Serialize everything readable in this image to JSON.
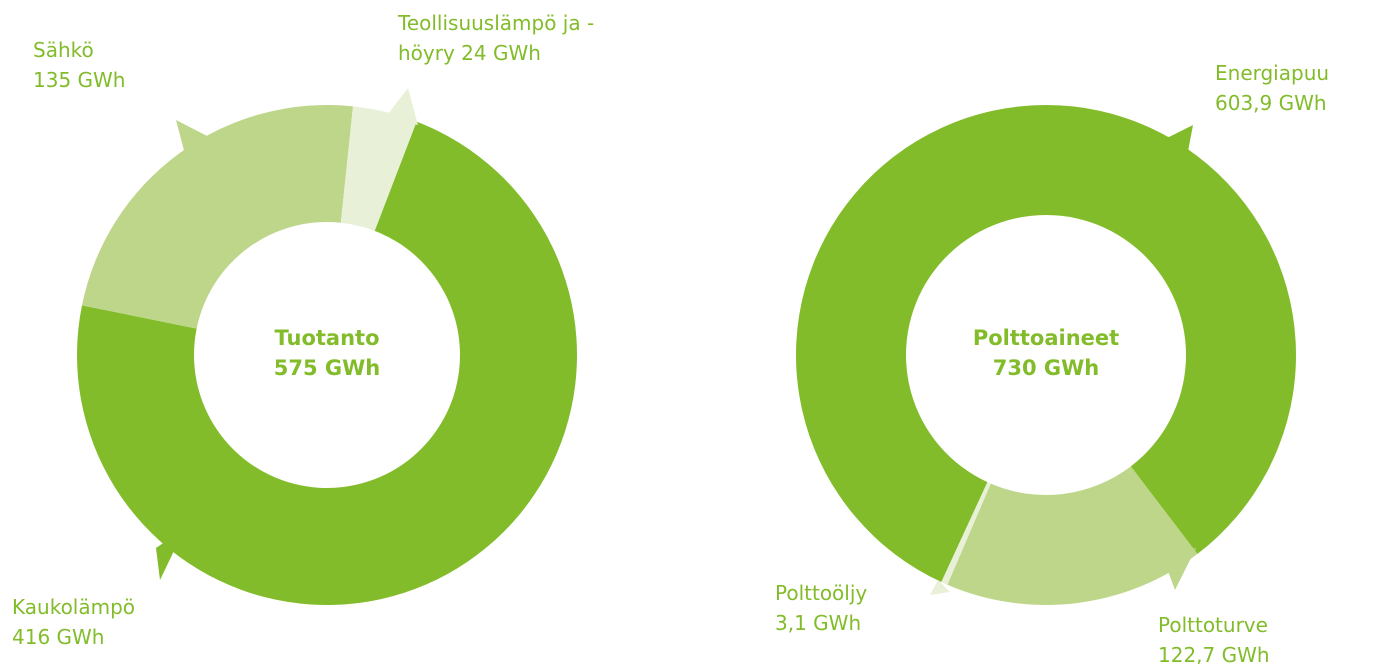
{
  "chart_data": [
    {
      "type": "pie",
      "title": "Tuotanto",
      "total_label": "575 GWh",
      "categories": [
        "Kaukolämpö",
        "Sähkö",
        "Teollisuuslämpö ja -höyry"
      ],
      "values": [
        416,
        135,
        24
      ],
      "value_labels": [
        "416 GWh",
        "135 GWh",
        "24 GWh"
      ],
      "colors": [
        "#82bc2a",
        "#bdd68a",
        "#e8f1d8"
      ]
    },
    {
      "type": "pie",
      "title": "Polttoaineet",
      "total_label": "730 GWh",
      "categories": [
        "Energiapuu",
        "Polttoturve",
        "Polttoöljy"
      ],
      "values": [
        603.9,
        122.7,
        3.1
      ],
      "value_labels": [
        "603,9 GWh",
        "122,7 GWh",
        "3,1 GWh"
      ],
      "colors": [
        "#82bc2a",
        "#bdd68a",
        "#e8f1d8"
      ]
    }
  ]
}
